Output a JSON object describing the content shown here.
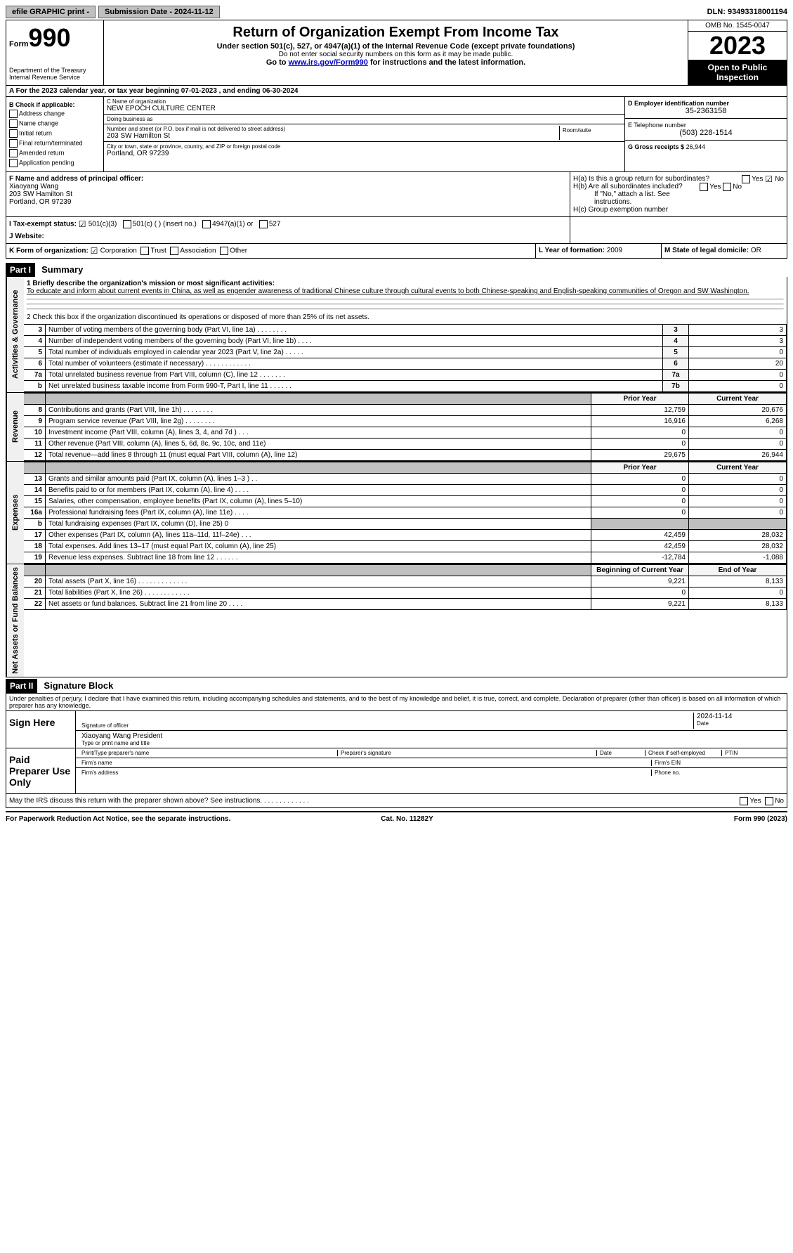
{
  "topbar": {
    "efile": "efile GRAPHIC print -",
    "submission": "Submission Date - 2024-11-12",
    "dln": "DLN: 93493318001194"
  },
  "header": {
    "form_word": "Form",
    "form_num": "990",
    "dept": "Department of the Treasury",
    "irs": "Internal Revenue Service",
    "title": "Return of Organization Exempt From Income Tax",
    "sub1": "Under section 501(c), 527, or 4947(a)(1) of the Internal Revenue Code (except private foundations)",
    "sub2": "Do not enter social security numbers on this form as it may be made public.",
    "sub3_pre": "Go to ",
    "sub3_link": "www.irs.gov/Form990",
    "sub3_post": " for instructions and the latest information.",
    "omb": "OMB No. 1545-0047",
    "year": "2023",
    "inspection": "Open to Public Inspection"
  },
  "row_a": "A For the 2023 calendar year, or tax year beginning 07-01-2023   , and ending 06-30-2024",
  "box_b": {
    "title": "B Check if applicable:",
    "opts": [
      "Address change",
      "Name change",
      "Initial return",
      "Final return/terminated",
      "Amended return",
      "Application pending"
    ]
  },
  "box_c": {
    "name_lbl": "C Name of organization",
    "name": "NEW EPOCH CULTURE CENTER",
    "dba_lbl": "Doing business as",
    "dba": "",
    "street_lbl": "Number and street (or P.O. box if mail is not delivered to street address)",
    "street": "203 SW Hamilton St",
    "room_lbl": "Room/suite",
    "city_lbl": "City or town, state or province, country, and ZIP or foreign postal code",
    "city": "Portland, OR  97239"
  },
  "box_d": {
    "ein_lbl": "D Employer identification number",
    "ein": "35-2363158",
    "tel_lbl": "E Telephone number",
    "tel": "(503) 228-1514",
    "gross_lbl": "G Gross receipts $",
    "gross": "26,944"
  },
  "box_f": {
    "lbl": "F Name and address of principal officer:",
    "name": "Xiaoyang Wang",
    "addr1": "203 SW Hamilton St",
    "addr2": "Portland, OR  97239"
  },
  "box_h": {
    "ha": "H(a) Is this a group return for subordinates?",
    "hb": "H(b) Are all subordinates included?",
    "hb_note": "If \"No,\" attach a list. See instructions.",
    "hc": "H(c) Group exemption number",
    "yes": "Yes",
    "no": "No"
  },
  "row_i": {
    "lbl": "I   Tax-exempt status:",
    "o1": "501(c)(3)",
    "o2": "501(c) (  ) (insert no.)",
    "o3": "4947(a)(1) or",
    "o4": "527"
  },
  "row_j": {
    "lbl": "J   Website:",
    "val": ""
  },
  "row_k": {
    "lbl": "K Form of organization:",
    "o1": "Corporation",
    "o2": "Trust",
    "o3": "Association",
    "o4": "Other"
  },
  "row_l": {
    "lbl": "L Year of formation:",
    "val": "2009"
  },
  "row_m": {
    "lbl": "M State of legal domicile:",
    "val": "OR"
  },
  "part1": {
    "hdr": "Part I",
    "title": "Summary",
    "vtab_ag": "Activities & Governance",
    "vtab_rev": "Revenue",
    "vtab_exp": "Expenses",
    "vtab_na": "Net Assets or Fund Balances",
    "line1_lbl": "1   Briefly describe the organization's mission or most significant activities:",
    "mission": "To educate and inform about current events in China, as well as engender awareness of traditional Chinese culture through cultural events to both Chinese-speaking and English-speaking communities of Oregon and SW Washington.",
    "line2": "2   Check this box      if the organization discontinued its operations or disposed of more than 25% of its net assets.",
    "prior_year": "Prior Year",
    "current_year": "Current Year",
    "boy": "Beginning of Current Year",
    "eoy": "End of Year",
    "rows_ag": [
      {
        "n": "3",
        "d": "Number of voting members of the governing body (Part VI, line 1a)   .    .    .    .    .    .    .    .",
        "l": "3",
        "v": "3"
      },
      {
        "n": "4",
        "d": "Number of independent voting members of the governing body (Part VI, line 1b)   .    .    .    .",
        "l": "4",
        "v": "3"
      },
      {
        "n": "5",
        "d": "Total number of individuals employed in calendar year 2023 (Part V, line 2a)   .    .    .    .    .",
        "l": "5",
        "v": "0"
      },
      {
        "n": "6",
        "d": "Total number of volunteers (estimate if necessary)   .    .    .    .    .    .    .    .    .    .    .    .",
        "l": "6",
        "v": "20"
      },
      {
        "n": "7a",
        "d": "Total unrelated business revenue from Part VIII, column (C), line 12   .    .    .    .    .    .    .",
        "l": "7a",
        "v": "0"
      },
      {
        "n": "b",
        "d": "Net unrelated business taxable income from Form 990-T, Part I, line 11   .    .    .    .    .    .",
        "l": "7b",
        "v": "0"
      }
    ],
    "rows_rev": [
      {
        "n": "8",
        "d": "Contributions and grants (Part VIII, line 1h)   .    .    .    .    .    .    .    .",
        "p": "12,759",
        "c": "20,676"
      },
      {
        "n": "9",
        "d": "Program service revenue (Part VIII, line 2g)   .    .    .    .    .    .    .    .",
        "p": "16,916",
        "c": "6,268"
      },
      {
        "n": "10",
        "d": "Investment income (Part VIII, column (A), lines 3, 4, and 7d )   .    .    .",
        "p": "0",
        "c": "0"
      },
      {
        "n": "11",
        "d": "Other revenue (Part VIII, column (A), lines 5, 6d, 8c, 9c, 10c, and 11e)",
        "p": "0",
        "c": "0"
      },
      {
        "n": "12",
        "d": "Total revenue—add lines 8 through 11 (must equal Part VIII, column (A), line 12)",
        "p": "29,675",
        "c": "26,944"
      }
    ],
    "rows_exp": [
      {
        "n": "13",
        "d": "Grants and similar amounts paid (Part IX, column (A), lines 1–3 )   .    .",
        "p": "0",
        "c": "0"
      },
      {
        "n": "14",
        "d": "Benefits paid to or for members (Part IX, column (A), line 4)   .    .    .    .",
        "p": "0",
        "c": "0"
      },
      {
        "n": "15",
        "d": "Salaries, other compensation, employee benefits (Part IX, column (A), lines 5–10)",
        "p": "0",
        "c": "0"
      },
      {
        "n": "16a",
        "d": "Professional fundraising fees (Part IX, column (A), line 11e)   .    .    .    .",
        "p": "0",
        "c": "0"
      },
      {
        "n": "b",
        "d": "Total fundraising expenses (Part IX, column (D), line 25) 0",
        "p": "",
        "c": "",
        "grey": true
      },
      {
        "n": "17",
        "d": "Other expenses (Part IX, column (A), lines 11a–11d, 11f–24e)   .    .    .",
        "p": "42,459",
        "c": "28,032"
      },
      {
        "n": "18",
        "d": "Total expenses. Add lines 13–17 (must equal Part IX, column (A), line 25)",
        "p": "42,459",
        "c": "28,032"
      },
      {
        "n": "19",
        "d": "Revenue less expenses. Subtract line 18 from line 12   .    .    .    .    .    .",
        "p": "-12,784",
        "c": "-1,088"
      }
    ],
    "rows_na": [
      {
        "n": "20",
        "d": "Total assets (Part X, line 16)   .    .    .    .    .    .    .    .    .    .    .    .    .",
        "p": "9,221",
        "c": "8,133"
      },
      {
        "n": "21",
        "d": "Total liabilities (Part X, line 26)   .    .    .    .    .    .    .    .    .    .    .    .",
        "p": "0",
        "c": "0"
      },
      {
        "n": "22",
        "d": "Net assets or fund balances. Subtract line 21 from line 20   .    .    .    .",
        "p": "9,221",
        "c": "8,133"
      }
    ]
  },
  "part2": {
    "hdr": "Part II",
    "title": "Signature Block",
    "decl": "Under penalties of perjury, I declare that I have examined this return, including accompanying schedules and statements, and to the best of my knowledge and belief, it is true, correct, and complete. Declaration of preparer (other than officer) is based on all information of which preparer has any knowledge.",
    "sign_here": "Sign Here",
    "sig_officer_lbl": "Signature of officer",
    "sig_date": "2024-11-14",
    "date_lbl": "Date",
    "officer_name": "Xiaoyang Wang  President",
    "type_lbl": "Type or print name and title",
    "paid": "Paid Preparer Use Only",
    "prep_name_lbl": "Print/Type preparer's name",
    "prep_sig_lbl": "Preparer's signature",
    "prep_date_lbl": "Date",
    "self_emp": "Check       if self-employed",
    "ptin": "PTIN",
    "firm_name": "Firm's name",
    "firm_ein": "Firm's EIN",
    "firm_addr": "Firm's address",
    "phone": "Phone no."
  },
  "discuss": "May the IRS discuss this return with the preparer shown above? See instructions.   .    .    .    .    .    .    .    .    .    .    .    .",
  "footer": {
    "left": "For Paperwork Reduction Act Notice, see the separate instructions.",
    "mid": "Cat. No. 11282Y",
    "right": "Form 990 (2023)"
  }
}
